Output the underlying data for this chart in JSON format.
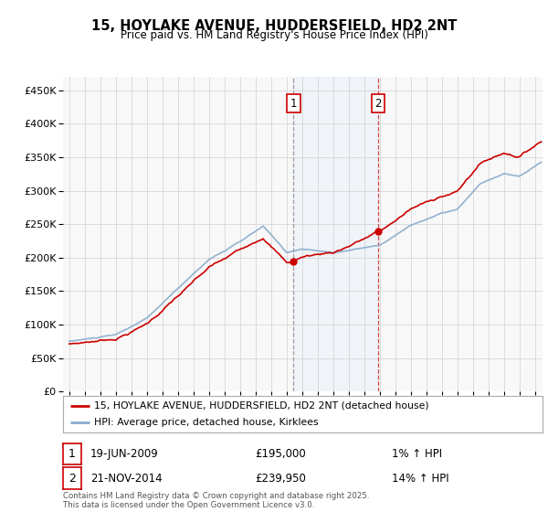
{
  "title1": "15, HOYLAKE AVENUE, HUDDERSFIELD, HD2 2NT",
  "title2": "Price paid vs. HM Land Registry's House Price Index (HPI)",
  "legend_line1": "15, HOYLAKE AVENUE, HUDDERSFIELD, HD2 2NT (detached house)",
  "legend_line2": "HPI: Average price, detached house, Kirklees",
  "footnote": "Contains HM Land Registry data © Crown copyright and database right 2025.\nThis data is licensed under the Open Government Licence v3.0.",
  "annotation1": {
    "label": "1",
    "date": "19-JUN-2009",
    "price": 195000,
    "hpi_change": "1% ↑ HPI"
  },
  "annotation2": {
    "label": "2",
    "date": "21-NOV-2014",
    "price": 239950,
    "hpi_change": "14% ↑ HPI"
  },
  "line_color": "#cc0000",
  "hpi_color": "#88aacc",
  "sale1_x": 2009.46,
  "sale2_x": 2014.9,
  "sale1_p": 195000,
  "sale2_p": 239950,
  "ylim": [
    0,
    470000
  ],
  "yticks": [
    0,
    50000,
    100000,
    150000,
    200000,
    250000,
    300000,
    350000,
    400000,
    450000
  ],
  "xlim_min": 1994.6,
  "xlim_max": 2025.5,
  "background_color": "#ffffff"
}
